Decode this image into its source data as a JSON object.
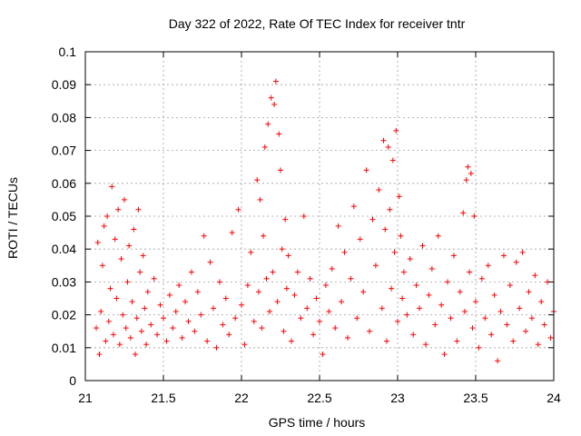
{
  "chart_data": {
    "type": "scatter",
    "title": "Day 322 of 2022, Rate Of TEC Index for receiver tntr",
    "xlabel": "GPS time / hours",
    "ylabel": "ROTI / TECUs",
    "xlim": [
      21,
      24
    ],
    "ylim": [
      0,
      0.1
    ],
    "xticks": [
      "21",
      "21.5",
      "22",
      "22.5",
      "23",
      "23.5",
      "24"
    ],
    "yticks": [
      "0",
      "0.01",
      "0.02",
      "0.03",
      "0.04",
      "0.05",
      "0.06",
      "0.07",
      "0.08",
      "0.09",
      "0.1"
    ],
    "grid": true,
    "marker": "+",
    "color": "#ff0000",
    "series": [
      {
        "points": [
          [
            21.07,
            0.016
          ],
          [
            21.08,
            0.042
          ],
          [
            21.09,
            0.008
          ],
          [
            21.1,
            0.021
          ],
          [
            21.11,
            0.035
          ],
          [
            21.12,
            0.047
          ],
          [
            21.13,
            0.012
          ],
          [
            21.14,
            0.05
          ],
          [
            21.15,
            0.018
          ],
          [
            21.16,
            0.028
          ],
          [
            21.17,
            0.059
          ],
          [
            21.18,
            0.014
          ],
          [
            21.19,
            0.043
          ],
          [
            21.2,
            0.025
          ],
          [
            21.21,
            0.052
          ],
          [
            21.22,
            0.011
          ],
          [
            21.23,
            0.037
          ],
          [
            21.24,
            0.02
          ],
          [
            21.25,
            0.055
          ],
          [
            21.26,
            0.016
          ],
          [
            21.27,
            0.03
          ],
          [
            21.28,
            0.041
          ],
          [
            21.29,
            0.013
          ],
          [
            21.3,
            0.024
          ],
          [
            21.31,
            0.046
          ],
          [
            21.32,
            0.008
          ],
          [
            21.33,
            0.019
          ],
          [
            21.34,
            0.052
          ],
          [
            21.35,
            0.033
          ],
          [
            21.36,
            0.015
          ],
          [
            21.37,
            0.038
          ],
          [
            21.38,
            0.022
          ],
          [
            21.39,
            0.011
          ],
          [
            21.4,
            0.027
          ],
          [
            21.42,
            0.017
          ],
          [
            21.44,
            0.031
          ],
          [
            21.46,
            0.014
          ],
          [
            21.48,
            0.023
          ],
          [
            21.5,
            0.019
          ],
          [
            21.52,
            0.012
          ],
          [
            21.54,
            0.026
          ],
          [
            21.56,
            0.016
          ],
          [
            21.58,
            0.021
          ],
          [
            21.6,
            0.029
          ],
          [
            21.62,
            0.013
          ],
          [
            21.64,
            0.024
          ],
          [
            21.66,
            0.018
          ],
          [
            21.68,
            0.033
          ],
          [
            21.7,
            0.015
          ],
          [
            21.72,
            0.027
          ],
          [
            21.74,
            0.02
          ],
          [
            21.76,
            0.044
          ],
          [
            21.78,
            0.012
          ],
          [
            21.8,
            0.036
          ],
          [
            21.82,
            0.022
          ],
          [
            21.84,
            0.01
          ],
          [
            21.86,
            0.03
          ],
          [
            21.88,
            0.017
          ],
          [
            21.9,
            0.025
          ],
          [
            21.92,
            0.014
          ],
          [
            21.94,
            0.045
          ],
          [
            21.96,
            0.019
          ],
          [
            21.98,
            0.052
          ],
          [
            22.0,
            0.023
          ],
          [
            22.02,
            0.011
          ],
          [
            22.04,
            0.029
          ],
          [
            22.06,
            0.039
          ],
          [
            22.08,
            0.018
          ],
          [
            22.1,
            0.061
          ],
          [
            22.11,
            0.027
          ],
          [
            22.12,
            0.055
          ],
          [
            22.13,
            0.016
          ],
          [
            22.14,
            0.044
          ],
          [
            22.15,
            0.071
          ],
          [
            22.16,
            0.031
          ],
          [
            22.17,
            0.078
          ],
          [
            22.18,
            0.021
          ],
          [
            22.19,
            0.086
          ],
          [
            22.2,
            0.033
          ],
          [
            22.21,
            0.084
          ],
          [
            22.22,
            0.091
          ],
          [
            22.23,
            0.024
          ],
          [
            22.24,
            0.075
          ],
          [
            22.25,
            0.064
          ],
          [
            22.26,
            0.04
          ],
          [
            22.27,
            0.015
          ],
          [
            22.28,
            0.049
          ],
          [
            22.29,
            0.028
          ],
          [
            22.3,
            0.038
          ],
          [
            22.32,
            0.012
          ],
          [
            22.34,
            0.026
          ],
          [
            22.36,
            0.033
          ],
          [
            22.38,
            0.019
          ],
          [
            22.4,
            0.05
          ],
          [
            22.42,
            0.022
          ],
          [
            22.44,
            0.031
          ],
          [
            22.46,
            0.014
          ],
          [
            22.48,
            0.025
          ],
          [
            22.5,
            0.018
          ],
          [
            22.52,
            0.008
          ],
          [
            22.54,
            0.029
          ],
          [
            22.56,
            0.021
          ],
          [
            22.58,
            0.034
          ],
          [
            22.6,
            0.016
          ],
          [
            22.62,
            0.047
          ],
          [
            22.64,
            0.024
          ],
          [
            22.66,
            0.039
          ],
          [
            22.68,
            0.013
          ],
          [
            22.7,
            0.031
          ],
          [
            22.72,
            0.053
          ],
          [
            22.74,
            0.019
          ],
          [
            22.76,
            0.043
          ],
          [
            22.78,
            0.027
          ],
          [
            22.8,
            0.064
          ],
          [
            22.82,
            0.015
          ],
          [
            22.84,
            0.049
          ],
          [
            22.86,
            0.035
          ],
          [
            22.88,
            0.058
          ],
          [
            22.9,
            0.022
          ],
          [
            22.91,
            0.073
          ],
          [
            22.92,
            0.046
          ],
          [
            22.93,
            0.012
          ],
          [
            22.94,
            0.071
          ],
          [
            22.95,
            0.052
          ],
          [
            22.96,
            0.028
          ],
          [
            22.97,
            0.067
          ],
          [
            22.98,
            0.039
          ],
          [
            22.99,
            0.076
          ],
          [
            23.0,
            0.018
          ],
          [
            23.01,
            0.056
          ],
          [
            23.02,
            0.044
          ],
          [
            23.03,
            0.025
          ],
          [
            23.04,
            0.033
          ],
          [
            23.06,
            0.02
          ],
          [
            23.08,
            0.037
          ],
          [
            23.1,
            0.014
          ],
          [
            23.12,
            0.029
          ],
          [
            23.14,
            0.022
          ],
          [
            23.16,
            0.041
          ],
          [
            23.18,
            0.011
          ],
          [
            23.2,
            0.026
          ],
          [
            23.22,
            0.034
          ],
          [
            23.24,
            0.017
          ],
          [
            23.26,
            0.044
          ],
          [
            23.28,
            0.023
          ],
          [
            23.3,
            0.008
          ],
          [
            23.32,
            0.03
          ],
          [
            23.34,
            0.019
          ],
          [
            23.36,
            0.038
          ],
          [
            23.38,
            0.012
          ],
          [
            23.4,
            0.027
          ],
          [
            23.42,
            0.051
          ],
          [
            23.43,
            0.021
          ],
          [
            23.44,
            0.061
          ],
          [
            23.45,
            0.065
          ],
          [
            23.46,
            0.033
          ],
          [
            23.47,
            0.063
          ],
          [
            23.48,
            0.016
          ],
          [
            23.49,
            0.05
          ],
          [
            23.5,
            0.024
          ],
          [
            23.52,
            0.01
          ],
          [
            23.54,
            0.031
          ],
          [
            23.56,
            0.019
          ],
          [
            23.58,
            0.035
          ],
          [
            23.6,
            0.014
          ],
          [
            23.62,
            0.026
          ],
          [
            23.64,
            0.006
          ],
          [
            23.66,
            0.021
          ],
          [
            23.68,
            0.038
          ],
          [
            23.7,
            0.017
          ],
          [
            23.72,
            0.029
          ],
          [
            23.74,
            0.012
          ],
          [
            23.76,
            0.036
          ],
          [
            23.78,
            0.022
          ],
          [
            23.8,
            0.039
          ],
          [
            23.82,
            0.015
          ],
          [
            23.84,
            0.027
          ],
          [
            23.86,
            0.019
          ],
          [
            23.88,
            0.032
          ],
          [
            23.9,
            0.011
          ],
          [
            23.92,
            0.024
          ],
          [
            23.94,
            0.017
          ],
          [
            23.96,
            0.03
          ],
          [
            23.98,
            0.013
          ],
          [
            24.0,
            0.021
          ]
        ]
      }
    ]
  }
}
